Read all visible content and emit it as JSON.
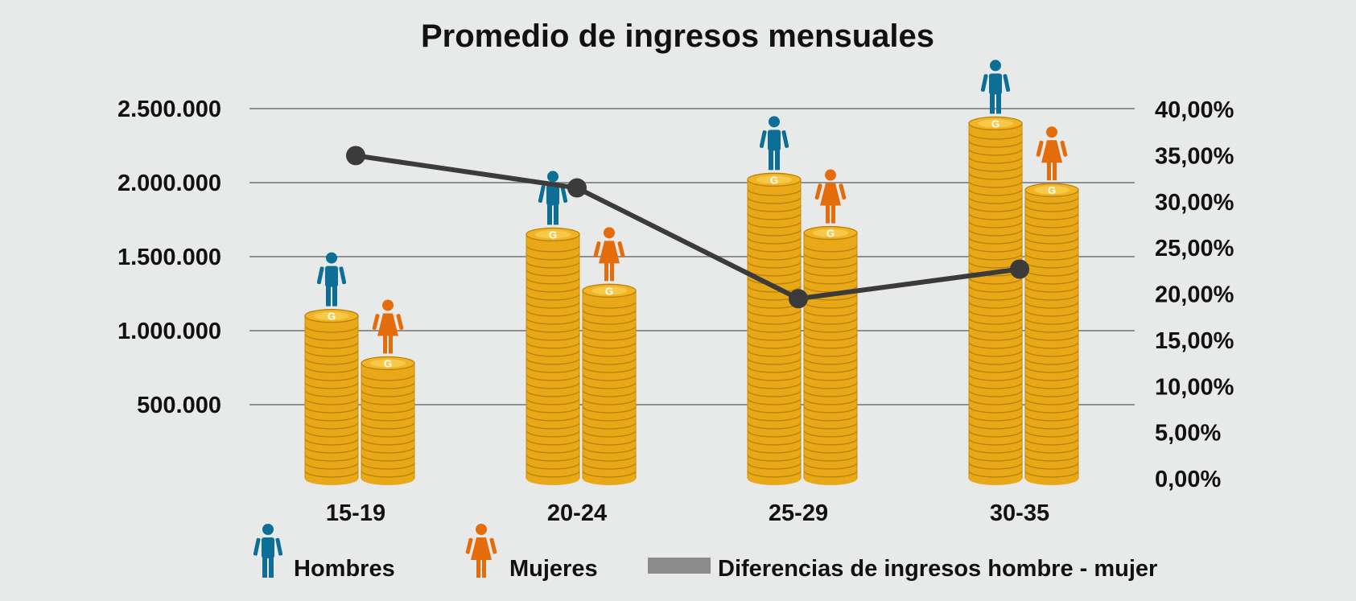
{
  "chart_data": {
    "type": "bar",
    "title": "Promedio de ingresos mensuales",
    "categories": [
      "15-19",
      "20-24",
      "25-29",
      "30-35"
    ],
    "series": [
      {
        "name": "Hombres",
        "kind": "bar",
        "axis": "left",
        "color": "#0e6f96",
        "values": [
          1100000,
          1650000,
          2020000,
          2400000
        ]
      },
      {
        "name": "Mujeres",
        "kind": "bar",
        "axis": "left",
        "color": "#e46c0a",
        "values": [
          780000,
          1270000,
          1660000,
          1950000
        ]
      },
      {
        "name": "Diferencias de ingresos hombre - mujer",
        "kind": "line",
        "axis": "right",
        "color": "#3b3b3b",
        "values": [
          0.35,
          0.315,
          0.195,
          0.227
        ]
      }
    ],
    "y_left": {
      "range": [
        0,
        2500000
      ],
      "ticks": [
        500000,
        1000000,
        1500000,
        2000000,
        2500000
      ],
      "tick_labels": [
        "500.000",
        "1.000.000",
        "1.500.000",
        "2.000.000",
        "2.500.000"
      ]
    },
    "y_right": {
      "range": [
        0,
        0.4
      ],
      "ticks": [
        0,
        0.05,
        0.1,
        0.15,
        0.2,
        0.25,
        0.3,
        0.35,
        0.4
      ],
      "tick_labels": [
        "0,00%",
        "5,00%",
        "10,00%",
        "15,00%",
        "20,00%",
        "25,00%",
        "30,00%",
        "35,00%",
        "40,00%"
      ]
    },
    "grid": true,
    "legend_position": "bottom",
    "bar_style": "coin-stacks",
    "coin_color": "#f2b422",
    "coin_letter": "G"
  }
}
